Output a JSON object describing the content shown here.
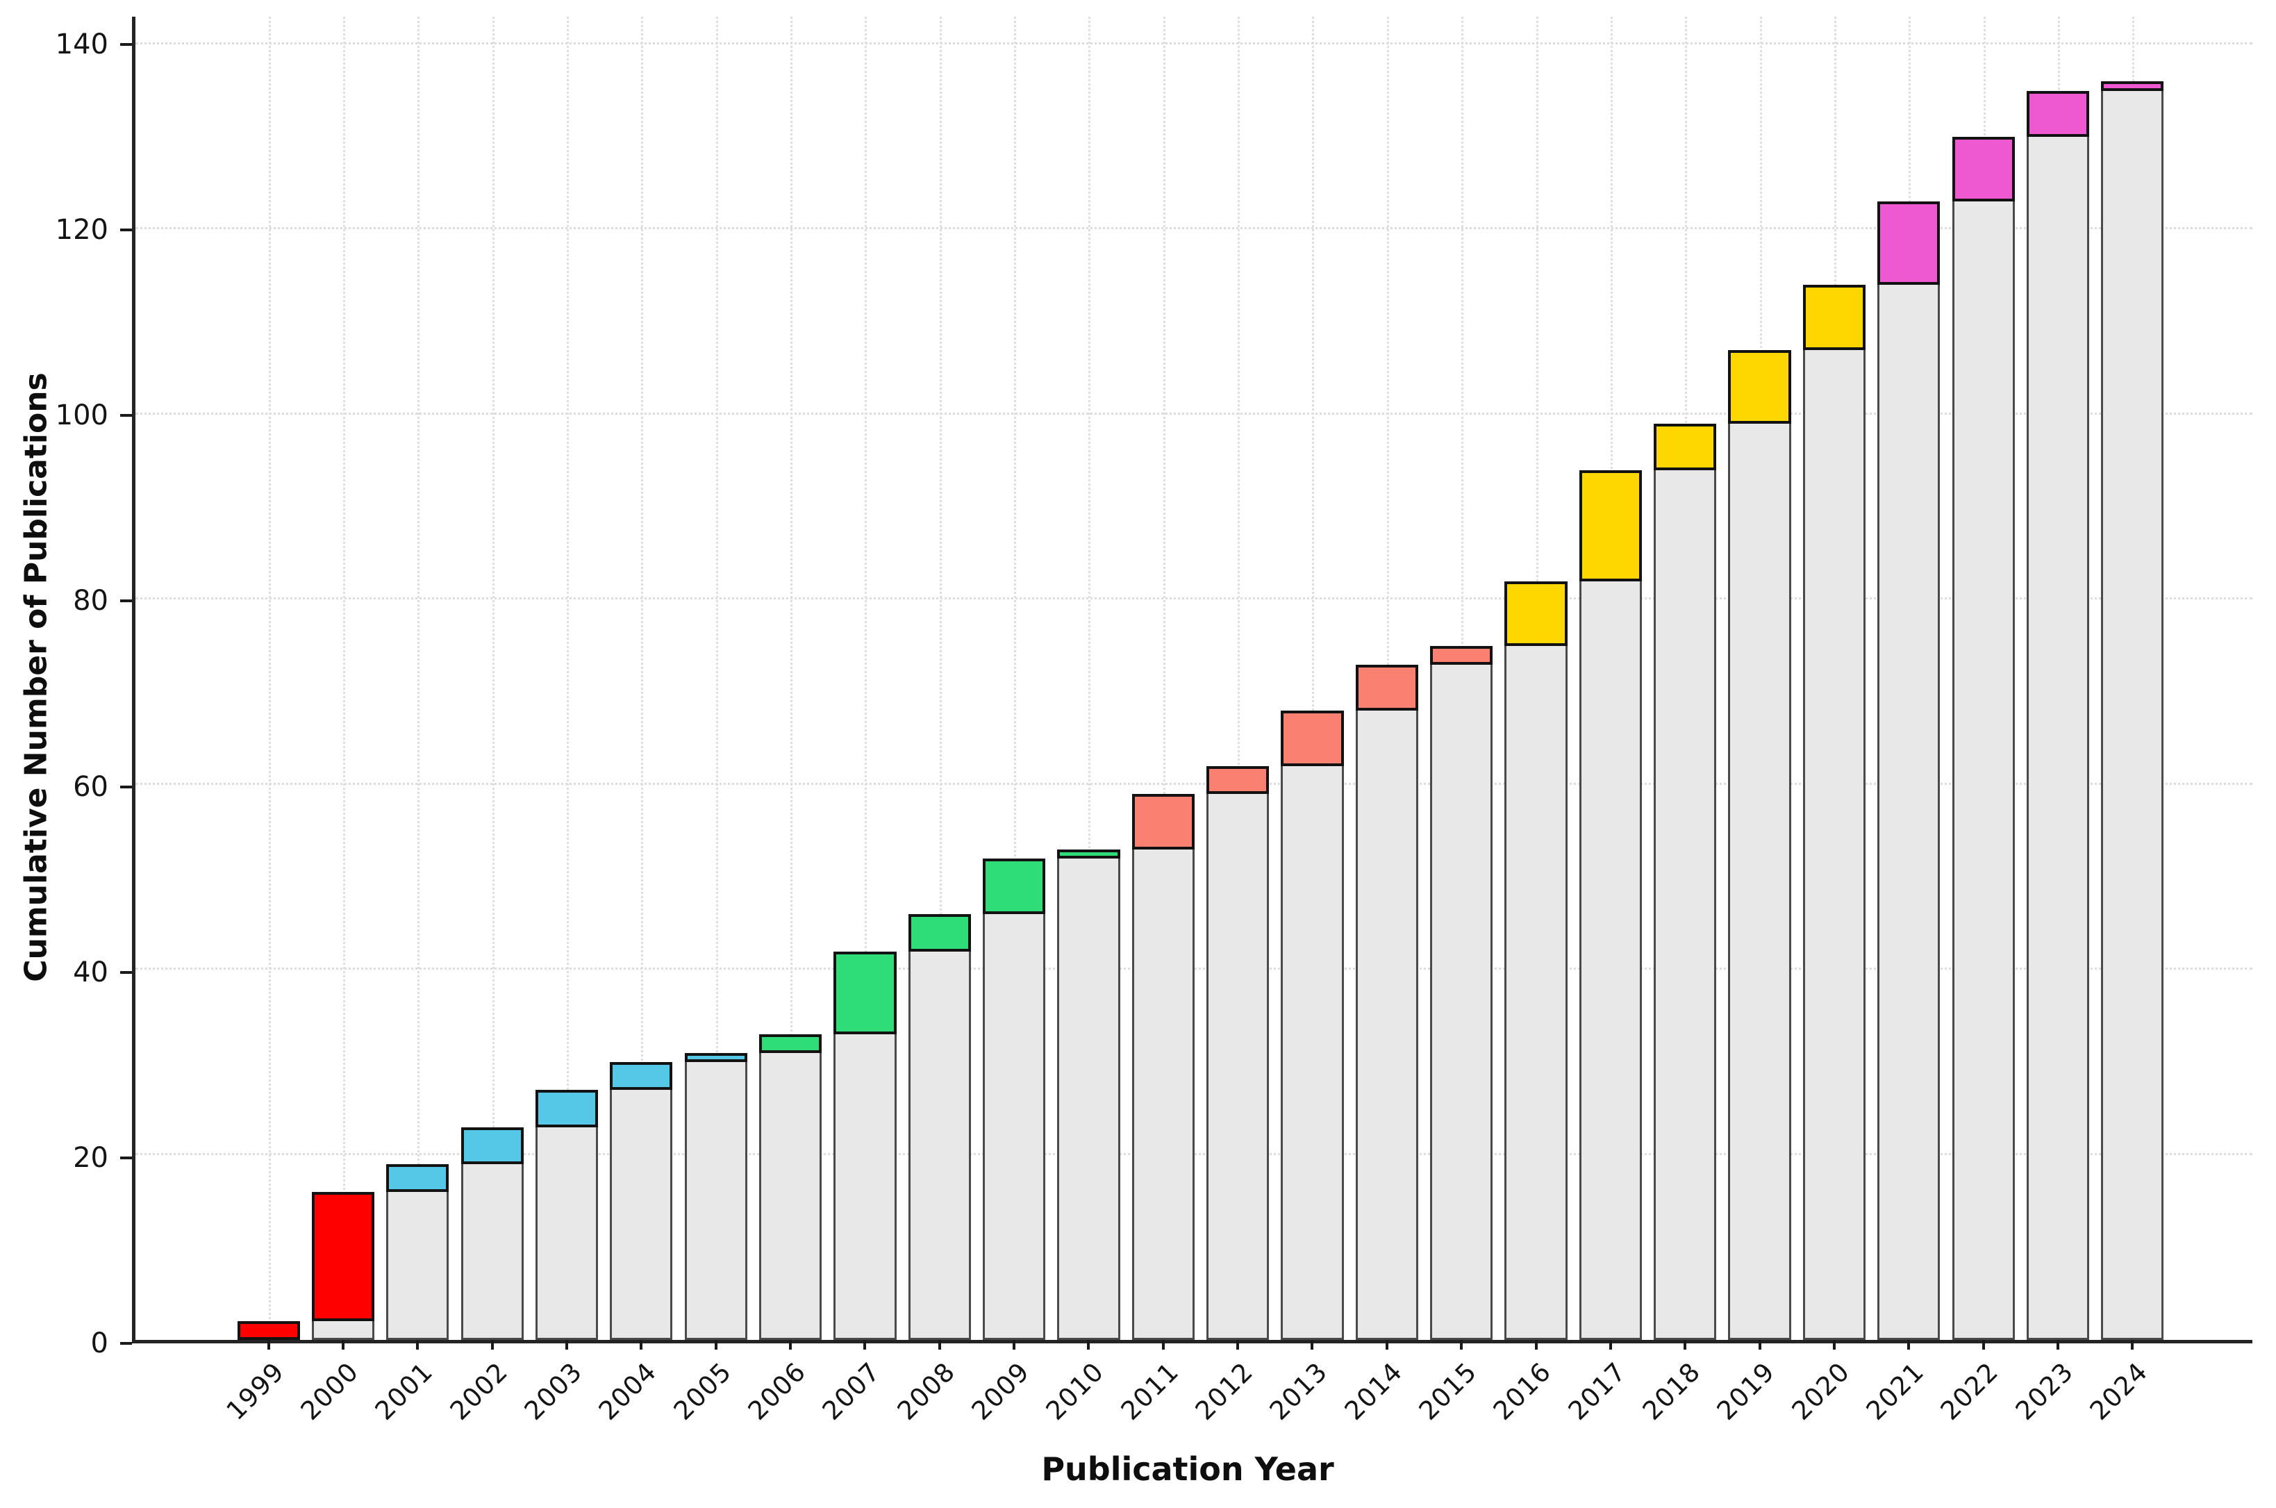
{
  "figure": {
    "background": "#ffffff",
    "title": ""
  },
  "axes": {
    "x_title": "Publication Year",
    "y_title": "Cumulative Number of Publications"
  },
  "chart_data": {
    "type": "bar",
    "subtype": "stacked-cumulative",
    "title": "",
    "xlabel": "Publication Year",
    "ylabel": "Cumulative Number of Publications",
    "categories": [
      "1999",
      "2000",
      "2001",
      "2002",
      "2003",
      "2004",
      "2005",
      "2006",
      "2007",
      "2008",
      "2009",
      "2010",
      "2011",
      "2012",
      "2013",
      "2014",
      "2015",
      "2016",
      "2017",
      "2018",
      "2019",
      "2020",
      "2021",
      "2022",
      "2023",
      "2024"
    ],
    "series": [
      {
        "name": "previous-cumulative-gray-base",
        "values": [
          0,
          2,
          16,
          19,
          23,
          27,
          30,
          31,
          33,
          42,
          46,
          52,
          53,
          59,
          62,
          68,
          73,
          75,
          82,
          94,
          99,
          107,
          114,
          123,
          130,
          135
        ]
      },
      {
        "name": "new-publications-colored-cap",
        "values": [
          2,
          14,
          3,
          4,
          4,
          3,
          1,
          2,
          9,
          4,
          6,
          1,
          6,
          3,
          6,
          5,
          2,
          7,
          12,
          5,
          8,
          7,
          9,
          7,
          5,
          1
        ]
      }
    ],
    "cumulative_totals": [
      2,
      16,
      19,
      23,
      27,
      30,
      31,
      33,
      42,
      46,
      52,
      53,
      59,
      62,
      68,
      73,
      75,
      82,
      94,
      99,
      107,
      114,
      123,
      130,
      135,
      136
    ],
    "cap_colors": [
      "#ff0000",
      "#ff0000",
      "#55c8e8",
      "#55c8e8",
      "#55c8e8",
      "#55c8e8",
      "#55c8e8",
      "#2fdd78",
      "#2fdd78",
      "#2fdd78",
      "#2fdd78",
      "#2fdd78",
      "#fa8072",
      "#fa8072",
      "#fa8072",
      "#fa8072",
      "#fa8072",
      "#ffd700",
      "#ffd700",
      "#ffd700",
      "#ffd700",
      "#ffd700",
      "#ee58d0",
      "#ee58d0",
      "#ee58d0",
      "#ee58d0"
    ],
    "color_periods": [
      {
        "range": "1999-2000",
        "color": "#ff0000"
      },
      {
        "range": "2001-2005",
        "color": "#55c8e8"
      },
      {
        "range": "2006-2010",
        "color": "#2fdd78"
      },
      {
        "range": "2011-2015",
        "color": "#fa8072"
      },
      {
        "range": "2016-2020",
        "color": "#ffd700"
      },
      {
        "range": "2021-2024",
        "color": "#ee58d0"
      }
    ],
    "base_color": "#e8e8e8",
    "yticks": [
      0,
      20,
      40,
      60,
      80,
      100,
      120,
      140
    ],
    "ylim": [
      0,
      143
    ],
    "grid": {
      "horizontal": "dotted",
      "vertical": "dotted",
      "color": "#dcdcdc"
    },
    "legend": "none"
  }
}
